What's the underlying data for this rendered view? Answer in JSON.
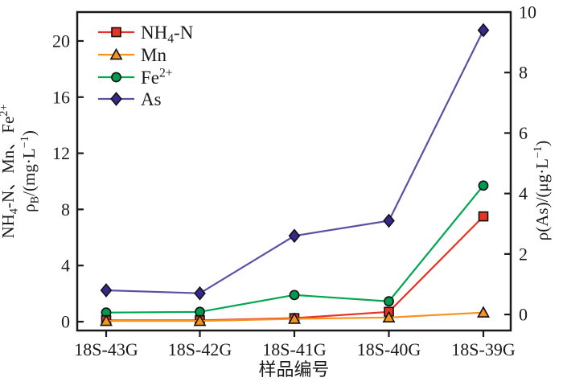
{
  "figure": {
    "background": "#ffffff",
    "text_color": "#1a1a1a",
    "frame_color": "#1a1a1a"
  },
  "chart_data": {
    "type": "line",
    "title": "",
    "xlabel": "样品编号",
    "categories": [
      "18S-43G",
      "18S-42G",
      "18S-41G",
      "18S-40G",
      "18S-39G"
    ],
    "series": [
      {
        "name": "NH₄-N",
        "name_parts": [
          [
            "NH"
          ],
          [
            "4",
            "sub"
          ],
          [
            "-N"
          ]
        ],
        "axis": "left",
        "line_color": "#e63323",
        "marker": "square",
        "marker_fill": "#e63323",
        "values": [
          0.1,
          0.1,
          0.25,
          0.7,
          7.5
        ]
      },
      {
        "name": "Mn",
        "name_parts": [
          [
            "Mn"
          ]
        ],
        "axis": "left",
        "line_color": "#f6921e",
        "marker": "triangle",
        "marker_fill": "#f6921e",
        "values": [
          0.05,
          0.05,
          0.2,
          0.3,
          0.65
        ]
      },
      {
        "name": "Fe²⁺",
        "name_parts": [
          [
            "Fe"
          ],
          [
            "2+",
            "sup"
          ]
        ],
        "axis": "left",
        "line_color": "#00a651",
        "marker": "circle",
        "marker_fill": "#009a4e",
        "values": [
          0.65,
          0.7,
          1.9,
          1.45,
          9.7
        ]
      },
      {
        "name": "As",
        "name_parts": [
          [
            "As"
          ]
        ],
        "axis": "right",
        "line_color": "#5a51a5",
        "marker": "diamond",
        "marker_fill": "#39288c",
        "values": [
          0.8,
          0.7,
          2.6,
          3.1,
          9.4
        ]
      }
    ],
    "left_axis": {
      "ticks": [
        0,
        4,
        8,
        12,
        16,
        20
      ],
      "range": [
        -0.63,
        22.06
      ],
      "label_line1": "NH₄-N、Mn、Fe²⁺",
      "label_line1_parts": [
        [
          "NH"
        ],
        [
          "4",
          "sub"
        ],
        [
          "-N、Mn、Fe"
        ],
        [
          "2+",
          "sup"
        ]
      ],
      "label_line2": "ρB/(mg·L⁻¹)",
      "label_line2_parts": [
        [
          "ρ"
        ],
        [
          "B",
          "sub"
        ],
        [
          "/(mg·L"
        ],
        [
          "−1",
          "sup"
        ],
        [
          ")"
        ]
      ]
    },
    "right_axis": {
      "ticks": [
        0,
        2,
        4,
        6,
        8,
        10
      ],
      "range": [
        -0.53,
        10.0
      ],
      "label": "ρ(As)/(μg·L⁻¹)",
      "label_parts": [
        [
          "ρ(As)/(μg·L"
        ],
        [
          "−1",
          "sup"
        ],
        [
          ")"
        ]
      ]
    },
    "legend": {
      "position": "top-left-inside"
    },
    "grid": false
  }
}
